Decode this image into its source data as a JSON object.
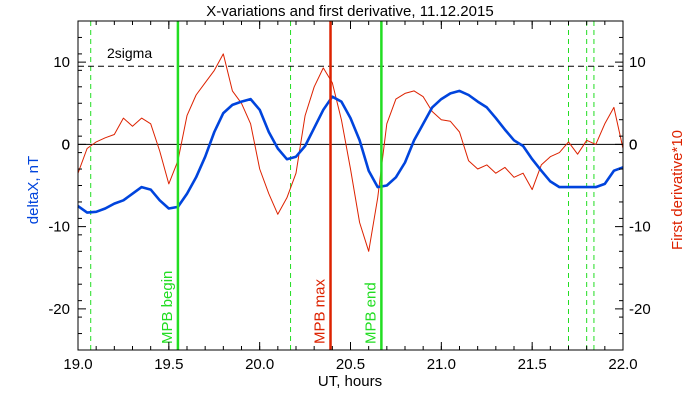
{
  "chart_data": {
    "type": "line",
    "title": "X-variations and first derivative, 11.12.2015",
    "xlabel": "UT, hours",
    "ylabel_left": "deltaX, nT",
    "ylabel_right": "First derivative*10",
    "xlim": [
      19.0,
      22.0
    ],
    "ylim": [
      -25,
      15
    ],
    "xticks": [
      "19.0",
      "19.5",
      "20.0",
      "20.5",
      "21.0",
      "21.5",
      "22.0"
    ],
    "yticks_left": [
      "10",
      "0",
      "-10",
      "-20"
    ],
    "yticks_right": [
      "10",
      "0",
      "-10",
      "-20"
    ],
    "sigma_label": "2sigma",
    "sigma_level": 9.5,
    "zero_line": 0,
    "colors": {
      "deltax": "#0044dd",
      "derivative": "#dd2200",
      "mpb": "#22dd22",
      "max": "#dd2200",
      "axes": "#000000"
    },
    "series": [
      {
        "name": "deltaX, nT",
        "axis": "left",
        "x": [
          19.0,
          19.05,
          19.1,
          19.15,
          19.2,
          19.25,
          19.3,
          19.35,
          19.4,
          19.45,
          19.5,
          19.55,
          19.6,
          19.65,
          19.7,
          19.75,
          19.8,
          19.85,
          19.9,
          19.95,
          20.0,
          20.05,
          20.1,
          20.15,
          20.2,
          20.25,
          20.3,
          20.35,
          20.4,
          20.45,
          20.5,
          20.55,
          20.6,
          20.65,
          20.7,
          20.75,
          20.8,
          20.85,
          20.9,
          20.95,
          21.0,
          21.05,
          21.1,
          21.15,
          21.2,
          21.25,
          21.3,
          21.35,
          21.4,
          21.45,
          21.5,
          21.55,
          21.6,
          21.65,
          21.7,
          21.75,
          21.8,
          21.85,
          21.9,
          21.95,
          22.0
        ],
        "values": [
          -7.5,
          -8.3,
          -8.2,
          -7.8,
          -7.2,
          -6.8,
          -6.0,
          -5.2,
          -5.5,
          -6.8,
          -7.8,
          -7.6,
          -6.0,
          -4.0,
          -1.5,
          1.5,
          3.8,
          4.8,
          5.2,
          5.5,
          4.2,
          1.5,
          -0.5,
          -1.8,
          -1.5,
          -0.2,
          2.0,
          4.2,
          5.8,
          5.2,
          3.2,
          0.5,
          -3.2,
          -5.2,
          -5.0,
          -4.0,
          -2.2,
          0.5,
          2.5,
          4.5,
          5.5,
          6.2,
          6.5,
          6.0,
          5.2,
          4.5,
          3.2,
          1.8,
          0.5,
          -0.2,
          -1.8,
          -3.2,
          -4.5,
          -5.2,
          -5.2,
          -5.2,
          -5.2,
          -5.2,
          -4.8,
          -3.2,
          -2.8
        ]
      },
      {
        "name": "First derivative*10",
        "axis": "right",
        "x": [
          19.0,
          19.05,
          19.1,
          19.15,
          19.2,
          19.25,
          19.3,
          19.35,
          19.4,
          19.45,
          19.5,
          19.55,
          19.6,
          19.65,
          19.7,
          19.75,
          19.8,
          19.85,
          19.9,
          19.95,
          20.0,
          20.05,
          20.1,
          20.15,
          20.2,
          20.25,
          20.3,
          20.35,
          20.4,
          20.45,
          20.5,
          20.55,
          20.6,
          20.65,
          20.7,
          20.75,
          20.8,
          20.85,
          20.9,
          20.95,
          21.0,
          21.05,
          21.1,
          21.15,
          21.2,
          21.25,
          21.3,
          21.35,
          21.4,
          21.45,
          21.5,
          21.55,
          21.6,
          21.65,
          21.7,
          21.75,
          21.8,
          21.85,
          21.9,
          21.95,
          22.0
        ],
        "values": [
          -3.5,
          -0.5,
          0.3,
          0.8,
          1.2,
          3.2,
          2.2,
          3.2,
          2.5,
          -0.8,
          -4.8,
          -2.0,
          3.5,
          6.0,
          7.5,
          9.0,
          11.0,
          6.5,
          5.0,
          2.5,
          -3.0,
          -6.0,
          -8.5,
          -6.5,
          -3.5,
          3.5,
          7.0,
          9.3,
          7.5,
          3.0,
          -3.0,
          -9.5,
          -13.0,
          -6.5,
          2.5,
          5.5,
          6.2,
          6.5,
          5.8,
          4.0,
          3.0,
          2.8,
          1.5,
          -2.0,
          -3.0,
          -2.5,
          -3.5,
          -2.8,
          -4.0,
          -3.5,
          -5.5,
          -2.5,
          -1.5,
          -1.0,
          0.3,
          -1.2,
          0.5,
          0.0,
          2.5,
          4.5,
          -0.5
        ]
      }
    ],
    "vertical_markers": [
      {
        "label": "MPB begin",
        "x": 19.55,
        "style": "solid",
        "color": "#22dd22"
      },
      {
        "label": "MPB max",
        "x": 20.39,
        "style": "solid",
        "color": "#dd2200"
      },
      {
        "label": "MPB end",
        "x": 20.67,
        "style": "solid",
        "color": "#22dd22"
      }
    ],
    "dashed_markers": [
      19.07,
      20.17,
      21.7,
      21.8,
      21.84
    ]
  }
}
